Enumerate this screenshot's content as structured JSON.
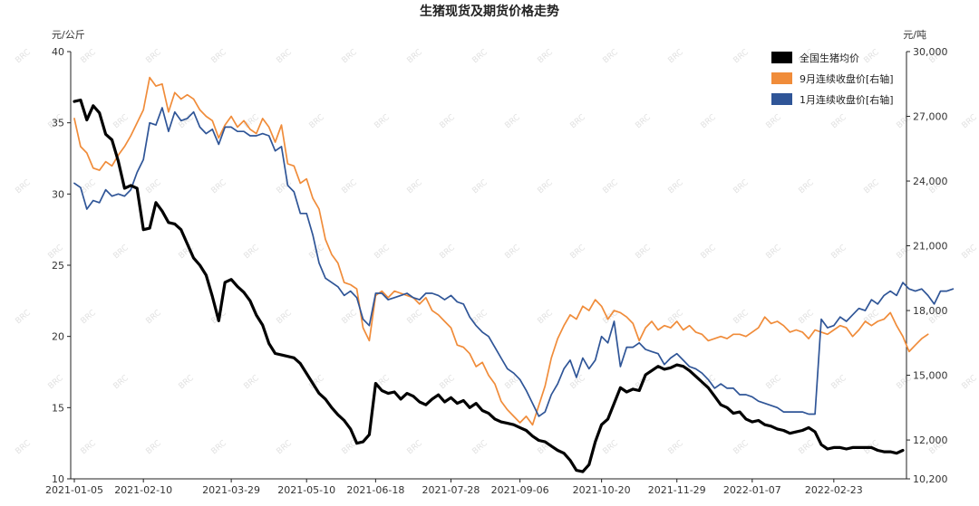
{
  "chart_data": {
    "type": "line",
    "title": "生猪现货及期货价格走势",
    "y_left_unit": "元/公斤",
    "y_right_unit": "元/吨",
    "y_left_range": [
      10,
      40
    ],
    "y_right_range": [
      10200,
      30000
    ],
    "y_left_ticks": [
      "10",
      "15",
      "20",
      "25",
      "30",
      "35",
      "40"
    ],
    "y_right_ticks": [
      "10,200",
      "12,000",
      "15,000",
      "18,000",
      "21,000",
      "24,000",
      "27,000",
      "30,000"
    ],
    "x_tick_labels": [
      "2021-01-05",
      "2021-02-10",
      "2021-03-29",
      "2021-05-10",
      "2021-06-18",
      "2021-07-28",
      "2021-09-06",
      "2021-10-20",
      "2021-11-29",
      "2022-01-07",
      "2022-02-23"
    ],
    "x_tick_index": [
      0,
      11,
      25,
      37,
      48,
      60,
      71,
      84,
      96,
      108,
      121
    ],
    "legend_position": "top-right",
    "watermark": "BRC",
    "series": [
      {
        "name": "全国生猪均价",
        "axis": "left",
        "color": "#000000",
        "values": [
          36.5,
          36.6,
          35.2,
          36.2,
          35.7,
          34.2,
          33.8,
          32.3,
          30.4,
          30.6,
          30.4,
          27.5,
          27.6,
          29.4,
          28.8,
          28.0,
          27.9,
          27.5,
          26.5,
          25.5,
          25.0,
          24.3,
          22.8,
          21.1,
          23.8,
          24.0,
          23.5,
          23.1,
          22.5,
          21.5,
          20.8,
          19.5,
          18.8,
          18.7,
          18.6,
          18.5,
          18.1,
          17.4,
          16.7,
          16.0,
          15.6,
          15.0,
          14.5,
          14.1,
          13.5,
          12.5,
          12.6,
          13.1,
          16.7,
          16.2,
          16.0,
          16.1,
          15.6,
          16.0,
          15.8,
          15.4,
          15.2,
          15.6,
          15.9,
          15.4,
          15.7,
          15.3,
          15.5,
          15.0,
          15.3,
          14.8,
          14.6,
          14.2,
          14.0,
          13.9,
          13.8,
          13.6,
          13.4,
          13.0,
          12.7,
          12.6,
          12.3,
          12.0,
          11.8,
          11.3,
          10.6,
          10.5,
          11.0,
          12.6,
          13.8,
          14.2,
          15.3,
          16.4,
          16.1,
          16.3,
          16.2,
          17.3,
          17.6,
          17.9,
          17.7,
          17.8,
          18.0,
          17.9,
          17.6,
          17.2,
          16.8,
          16.4,
          15.8,
          15.2,
          15.0,
          14.6,
          14.7,
          14.2,
          14.0,
          14.1,
          13.8,
          13.7,
          13.5,
          13.4,
          13.2,
          13.3,
          13.4,
          13.6,
          13.3,
          12.4,
          12.1,
          12.2,
          12.2,
          12.1,
          12.2,
          12.2,
          12.2,
          12.2,
          12.0,
          11.9,
          11.9,
          11.8,
          12.0
        ]
      },
      {
        "name": "9月连续收盘价[右轴]",
        "axis": "right",
        "color": "#f08c3a",
        "values": [
          26900,
          25600,
          25300,
          24600,
          24500,
          24900,
          24700,
          25200,
          25600,
          26100,
          26700,
          27300,
          28800,
          28400,
          28500,
          27200,
          28100,
          27800,
          28000,
          27800,
          27300,
          27000,
          26800,
          26000,
          26600,
          27000,
          26500,
          26800,
          26400,
          26200,
          26900,
          26500,
          25800,
          26600,
          24800,
          24700,
          23900,
          24100,
          23200,
          22700,
          21300,
          20600,
          20200,
          19300,
          19200,
          19000,
          17200,
          16600,
          18700,
          18900,
          18600,
          18900,
          18800,
          18700,
          18600,
          18300,
          18600,
          18000,
          17800,
          17500,
          17200,
          16400,
          16300,
          16000,
          15400,
          15600,
          15000,
          14600,
          13800,
          13400,
          13100,
          12800,
          13100,
          12700,
          13600,
          14500,
          15800,
          16700,
          17300,
          17800,
          17600,
          18200,
          18000,
          18500,
          18200,
          17600,
          18000,
          17900,
          17700,
          17400,
          16600,
          17200,
          17500,
          17100,
          17300,
          17200,
          17500,
          17100,
          17300,
          17000,
          16900,
          16600,
          16700,
          16800,
          16700,
          16900,
          16900,
          16800,
          17000,
          17200,
          17700,
          17400,
          17500,
          17300,
          17000,
          17100,
          17000,
          16700,
          17100,
          17000,
          16900,
          17100,
          17300,
          17200,
          16800,
          17100,
          17500,
          17300,
          17500,
          17600,
          17900,
          17300,
          16800,
          16100,
          16400,
          16700,
          16900
        ]
      },
      {
        "name": "1月连续收盘价[右轴]",
        "axis": "right",
        "color": "#2f5597",
        "values": [
          23900,
          23700,
          22700,
          23100,
          23000,
          23600,
          23300,
          23400,
          23300,
          23600,
          24400,
          25000,
          26700,
          26600,
          27400,
          26300,
          27200,
          26800,
          26900,
          27200,
          26500,
          26200,
          26400,
          25700,
          26500,
          26500,
          26300,
          26300,
          26100,
          26100,
          26200,
          26100,
          25400,
          25600,
          23800,
          23500,
          22500,
          22500,
          21500,
          20200,
          19500,
          19300,
          19100,
          18700,
          18900,
          18600,
          17600,
          17300,
          18800,
          18800,
          18500,
          18600,
          18700,
          18800,
          18600,
          18500,
          18800,
          18800,
          18700,
          18500,
          18700,
          18400,
          18300,
          17700,
          17300,
          17000,
          16800,
          16300,
          15800,
          15300,
          15100,
          14800,
          14300,
          13700,
          13100,
          13300,
          14100,
          14600,
          15300,
          15700,
          14900,
          15800,
          15300,
          15700,
          16800,
          16500,
          17500,
          15400,
          16300,
          16300,
          16500,
          16200,
          16100,
          16000,
          15500,
          15800,
          16000,
          15700,
          15400,
          15300,
          15100,
          14800,
          14400,
          14600,
          14400,
          14400,
          14100,
          14100,
          14000,
          13800,
          13700,
          13600,
          13500,
          13300,
          13300,
          13300,
          13300,
          13200,
          13200,
          17600,
          17200,
          17300,
          17700,
          17500,
          17800,
          18100,
          18000,
          18500,
          18300,
          18700,
          18900,
          18700,
          19300,
          19000,
          18900,
          19000,
          18700,
          18300,
          18900,
          18900,
          19000
        ]
      }
    ]
  }
}
